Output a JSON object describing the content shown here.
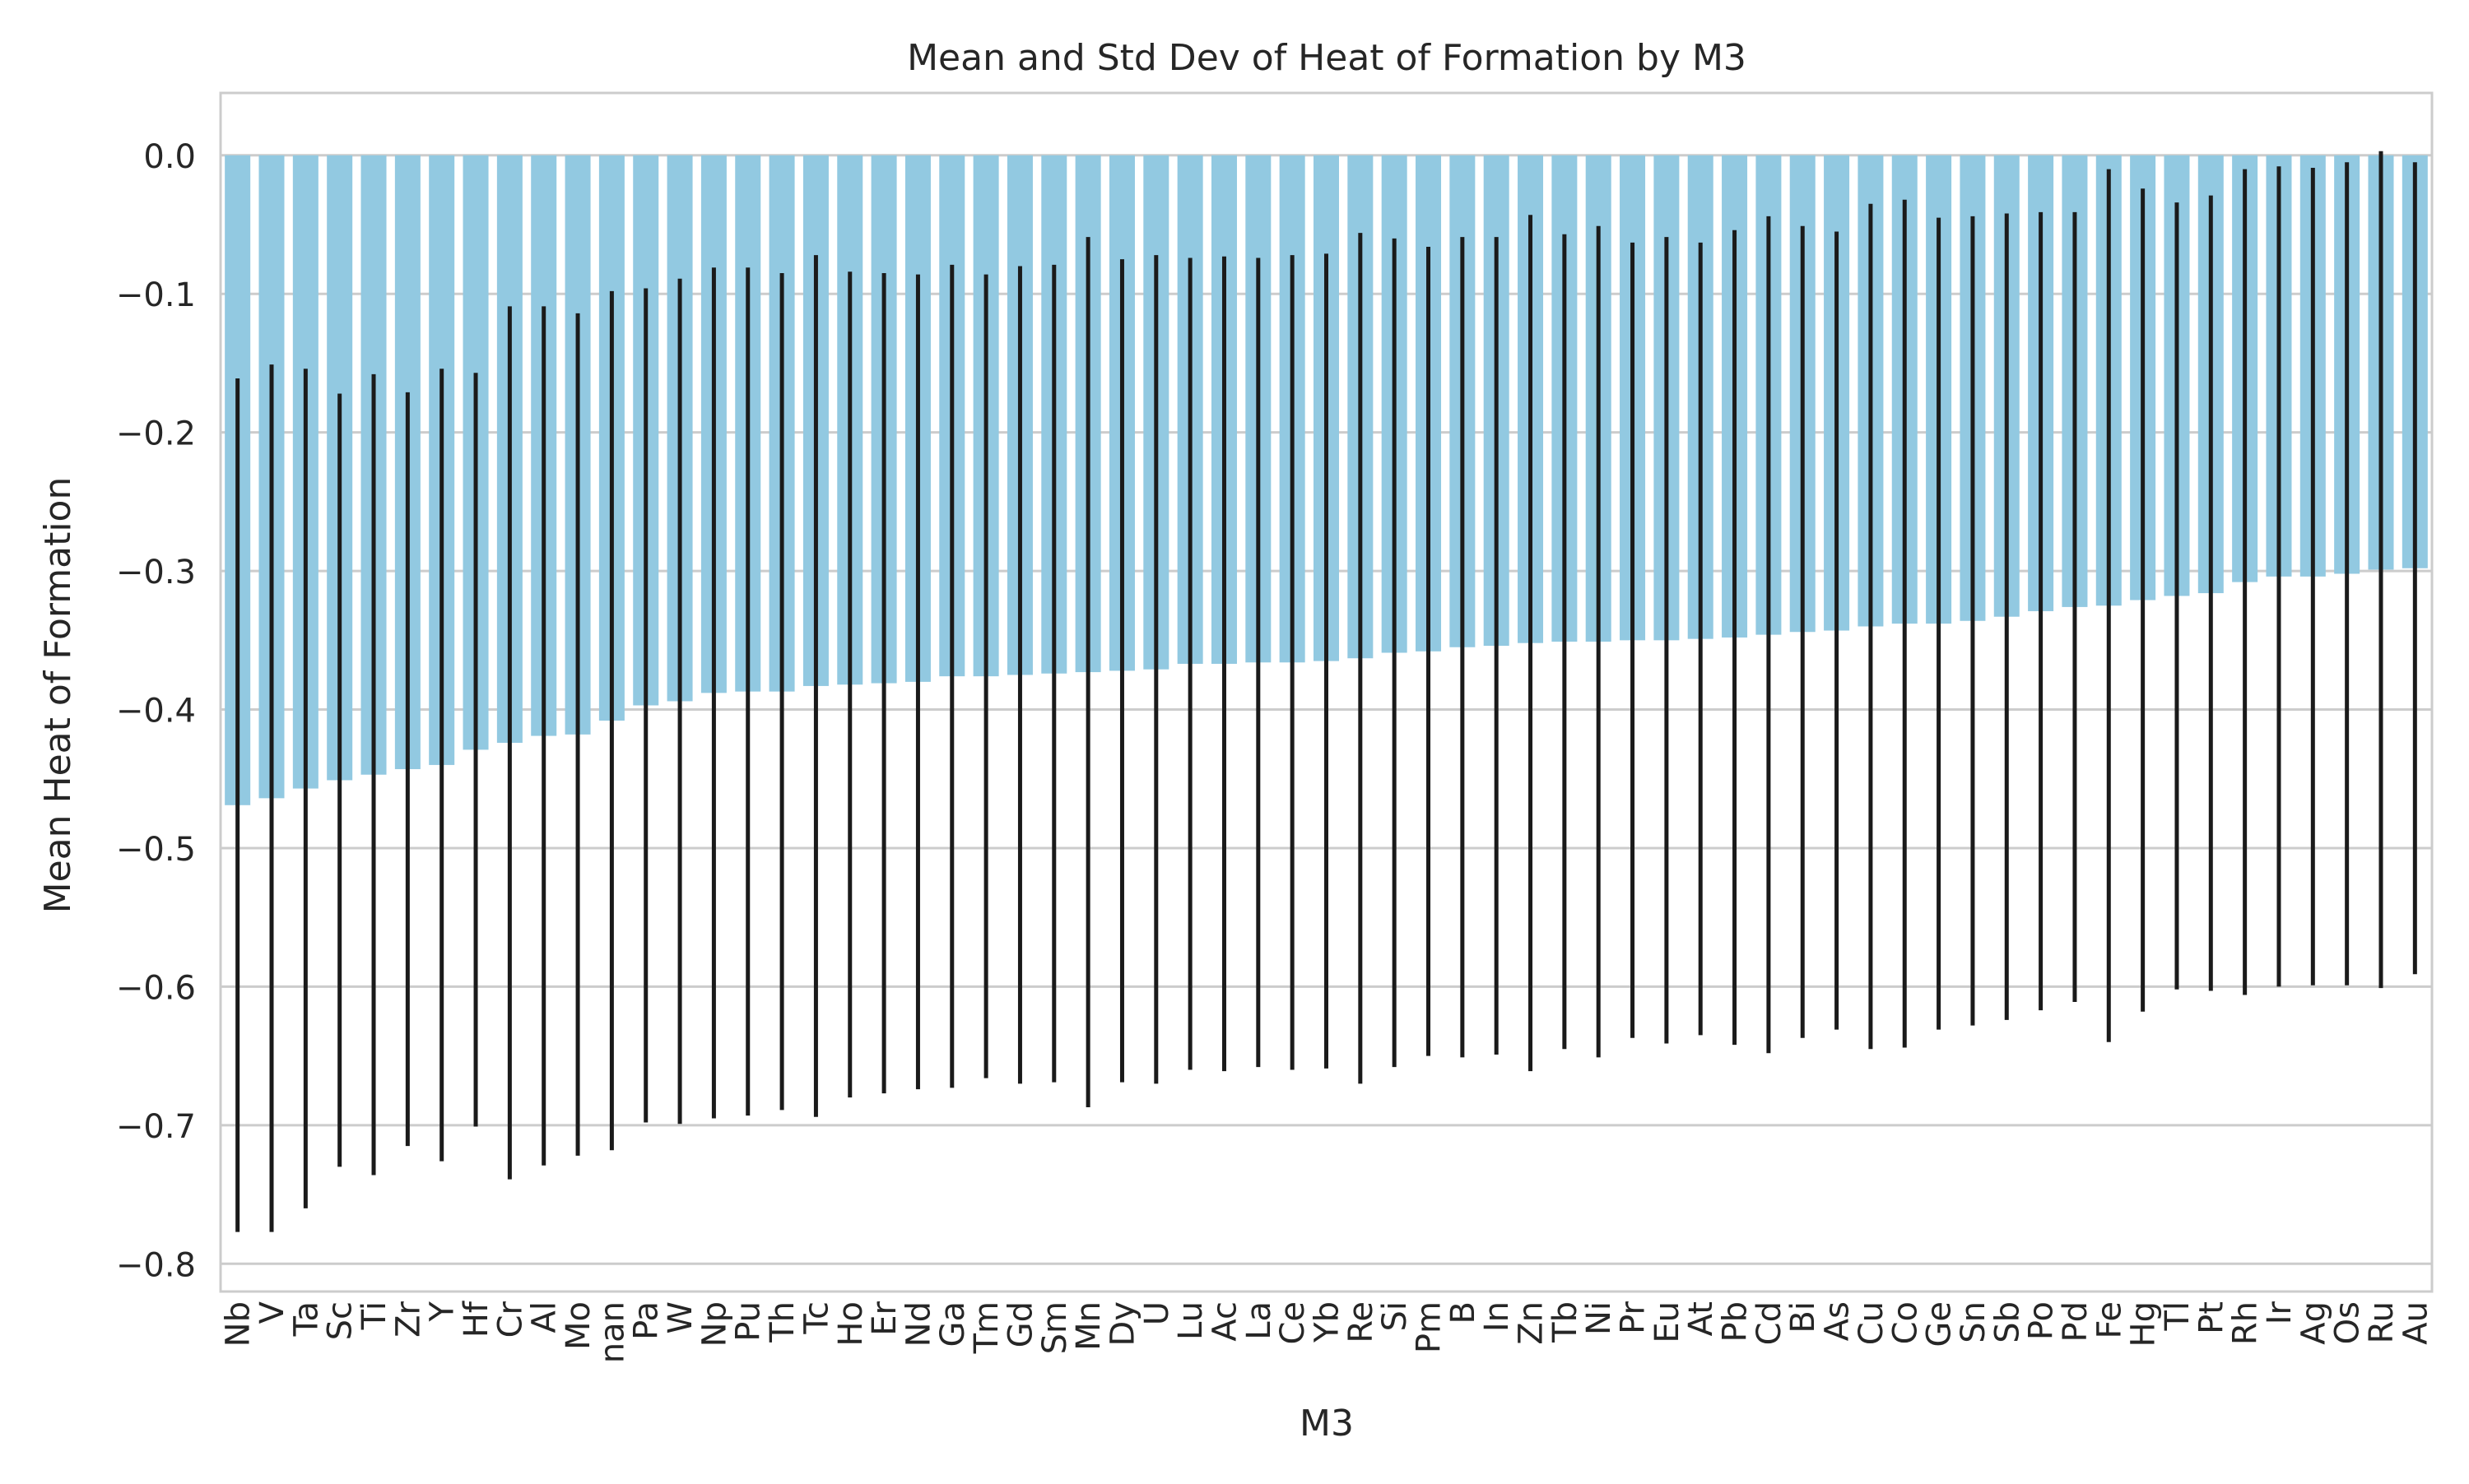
{
  "chart_data": {
    "type": "bar",
    "title": "Mean and Std Dev of Heat of Formation by M3",
    "xlabel": "M3",
    "ylabel": "Mean Heat of Formation",
    "ylim": [
      -0.82,
      0.045
    ],
    "yticks": [
      0.0,
      -0.1,
      -0.2,
      -0.3,
      -0.4,
      -0.5,
      -0.6,
      -0.7,
      -0.8
    ],
    "ytick_labels": [
      "0.0",
      "−0.1",
      "−0.2",
      "−0.3",
      "−0.4",
      "−0.5",
      "−0.6",
      "−0.7",
      "−0.8"
    ],
    "grid": true,
    "bar_color": "#92c9e1",
    "error_color": "#1a1a1a",
    "grid_color": "#cccccc",
    "categories": [
      "Nb",
      "V",
      "Ta",
      "Sc",
      "Ti",
      "Zr",
      "Y",
      "Hf",
      "Cr",
      "Al",
      "Mo",
      "nan",
      "Pa",
      "W",
      "Np",
      "Pu",
      "Th",
      "Tc",
      "Ho",
      "Er",
      "Nd",
      "Ga",
      "Tm",
      "Gd",
      "Sm",
      "Mn",
      "Dy",
      "U",
      "Lu",
      "Ac",
      "La",
      "Ce",
      "Yb",
      "Re",
      "Si",
      "Pm",
      "B",
      "In",
      "Zn",
      "Tb",
      "Ni",
      "Pr",
      "Eu",
      "At",
      "Pb",
      "Cd",
      "Bi",
      "As",
      "Cu",
      "Co",
      "Ge",
      "Sn",
      "Sb",
      "Po",
      "Pd",
      "Fe",
      "Hg",
      "Tl",
      "Pt",
      "Rh",
      "Ir",
      "Ag",
      "Os",
      "Ru",
      "Au"
    ],
    "values": [
      -0.469,
      -0.464,
      -0.457,
      -0.451,
      -0.447,
      -0.443,
      -0.44,
      -0.429,
      -0.424,
      -0.419,
      -0.418,
      -0.408,
      -0.397,
      -0.394,
      -0.388,
      -0.387,
      -0.387,
      -0.383,
      -0.382,
      -0.381,
      -0.38,
      -0.376,
      -0.376,
      -0.375,
      -0.374,
      -0.373,
      -0.372,
      -0.371,
      -0.367,
      -0.367,
      -0.366,
      -0.366,
      -0.365,
      -0.363,
      -0.359,
      -0.358,
      -0.355,
      -0.354,
      -0.352,
      -0.351,
      -0.351,
      -0.35,
      -0.35,
      -0.349,
      -0.348,
      -0.346,
      -0.344,
      -0.343,
      -0.34,
      -0.338,
      -0.338,
      -0.336,
      -0.333,
      -0.329,
      -0.326,
      -0.325,
      -0.321,
      -0.318,
      -0.316,
      -0.308,
      -0.304,
      -0.304,
      -0.302,
      -0.299,
      -0.298
    ],
    "std": [
      0.308,
      0.313,
      0.303,
      0.279,
      0.289,
      0.272,
      0.286,
      0.272,
      0.315,
      0.31,
      0.304,
      0.31,
      0.301,
      0.305,
      0.307,
      0.306,
      0.302,
      0.311,
      0.298,
      0.296,
      0.294,
      0.297,
      0.29,
      0.295,
      0.295,
      0.314,
      0.297,
      0.299,
      0.293,
      0.294,
      0.292,
      0.294,
      0.294,
      0.307,
      0.299,
      0.292,
      0.296,
      0.295,
      0.309,
      0.294,
      0.3,
      0.287,
      0.291,
      0.286,
      0.294,
      0.302,
      0.293,
      0.288,
      0.305,
      0.306,
      0.293,
      0.292,
      0.291,
      0.288,
      0.285,
      0.315,
      0.297,
      0.284,
      0.287,
      0.298,
      0.296,
      0.295,
      0.297,
      0.302,
      0.293
    ]
  }
}
